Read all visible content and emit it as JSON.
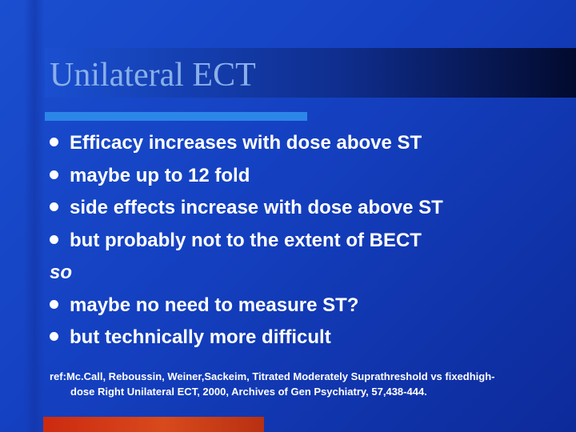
{
  "slide": {
    "title": "Unilateral ECT",
    "bullets": [
      "Efficacy increases with dose above ST",
      "maybe up to 12 fold",
      "side effects increase with dose above ST",
      "but probably not to the extent of BECT"
    ],
    "connector": "so",
    "bullets_after": [
      "maybe no need to measure ST?",
      "but technically more difficult"
    ],
    "reference": {
      "line1": "ref:Mc.Call, Reboussin, Weiner,Sackeim, Titrated Moderately Suprathreshold vs fixedhigh-",
      "line2": "dose Right Unilateral ECT, 2000, Archives of Gen Psychiatry, 57,438-444."
    }
  },
  "colors": {
    "background": "#1a4fd0",
    "title_text": "#8ab0e8",
    "underline": "#2c86e8",
    "footer_bar": "#cc2a10",
    "body_text": "#ffffff"
  }
}
